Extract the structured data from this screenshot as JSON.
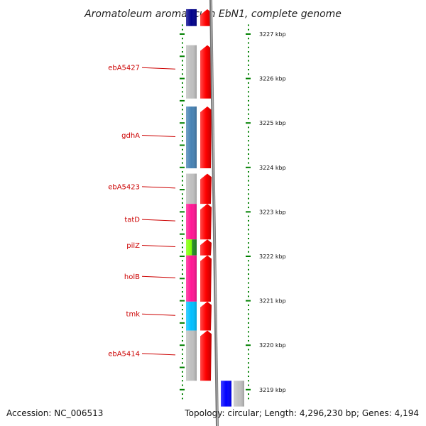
{
  "title": "Aromatoleum aromaticum EbN1, complete genome",
  "footer": {
    "accession": "Accession: NC_006513",
    "topology": "Topology: circular; Length: 4,296,230 bp; Genes: 4,194"
  },
  "scale_marks": [
    {
      "label": "3227 kbp",
      "kbp": 3227
    },
    {
      "label": "3226 kbp",
      "kbp": 3226
    },
    {
      "label": "3225 kbp",
      "kbp": 3225
    },
    {
      "label": "3224 kbp",
      "kbp": 3224
    },
    {
      "label": "3223 kbp",
      "kbp": 3223
    },
    {
      "label": "3222 kbp",
      "kbp": 3222
    },
    {
      "label": "3221 kbp",
      "kbp": 3221
    },
    {
      "label": "3220 kbp",
      "kbp": 3220
    },
    {
      "label": "3219 kbp",
      "kbp": 3219
    }
  ],
  "genes": [
    {
      "name": "",
      "start_kbp": 3227.18,
      "end_kbp": 3227.56,
      "strand": "-",
      "color": "#00008b"
    },
    {
      "name": "ebA5427",
      "start_kbp": 3225.55,
      "end_kbp": 3226.75,
      "strand": "-",
      "color": "#c0c0c0"
    },
    {
      "name": "gdhA",
      "start_kbp": 3223.98,
      "end_kbp": 3225.37,
      "strand": "-",
      "color": "#4682b4"
    },
    {
      "name": "ebA5423",
      "start_kbp": 3223.18,
      "end_kbp": 3223.86,
      "strand": "-",
      "color": "#c0c0c0"
    },
    {
      "name": "tatD",
      "start_kbp": 3222.38,
      "end_kbp": 3223.18,
      "strand": "-",
      "color": "#ff1493"
    },
    {
      "name": "pilZ",
      "start_kbp": 3222.02,
      "end_kbp": 3222.38,
      "strand": "-",
      "color": "#7fff00",
      "color2": "#228b22"
    },
    {
      "name": "holB",
      "start_kbp": 3220.98,
      "end_kbp": 3222.02,
      "strand": "-",
      "color": "#ff1493"
    },
    {
      "name": "tmk",
      "start_kbp": 3220.33,
      "end_kbp": 3220.98,
      "strand": "-",
      "color": "#00bfff"
    },
    {
      "name": "ebA5414",
      "start_kbp": 3219.2,
      "end_kbp": 3220.33,
      "strand": "-",
      "color": "#c0c0c0"
    },
    {
      "name": "",
      "start_kbp": 3218.62,
      "end_kbp": 3219.2,
      "strand": "+",
      "color": "#0000ff"
    },
    {
      "name": "",
      "start_kbp": 3218.62,
      "end_kbp": 3219.2,
      "strand": "+",
      "color": "#c0c0c0"
    }
  ]
}
